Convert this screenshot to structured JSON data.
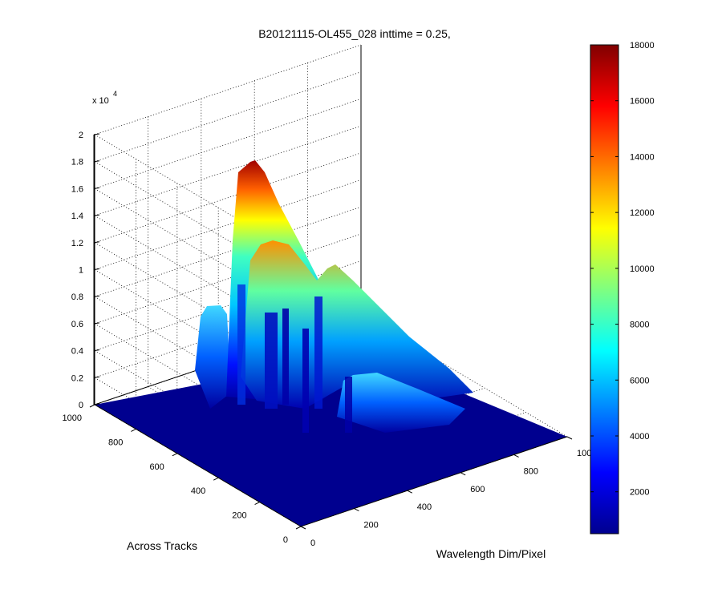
{
  "chart_data": {
    "type": "surface",
    "title": "B20121115-OL455_028 inttime = 0.25,",
    "xlabel": "Wavelength Dim/Pixel",
    "ylabel": "Across Tracks",
    "zlabel": "",
    "z_multiplier_label": "x 10",
    "z_multiplier_exponent": "4",
    "x_ticks": [
      0,
      200,
      400,
      600,
      800,
      1000
    ],
    "y_ticks": [
      0,
      200,
      400,
      600,
      800,
      1000
    ],
    "z_ticks": [
      "0",
      "0.2",
      "0.4",
      "0.6",
      "0.8",
      "1",
      "1.2",
      "1.4",
      "1.6",
      "1.8",
      "2"
    ],
    "xlim": [
      0,
      1000
    ],
    "ylim": [
      0,
      1000
    ],
    "zlim": [
      0,
      20000
    ],
    "grid": true,
    "colormap": "jet",
    "colorbar": {
      "location": "right",
      "ticks": [
        2000,
        4000,
        6000,
        8000,
        10000,
        12000,
        14000,
        16000,
        18000
      ],
      "range": [
        500,
        18000
      ]
    },
    "surface_profiles": [
      {
        "along_wavelength_x": 45,
        "across_tracks_y": [
          0,
          700
        ],
        "peak": 3000
      },
      {
        "along_wavelength_x": 120,
        "across_tracks_y": [
          0,
          720
        ],
        "peak": 18000
      },
      {
        "along_wavelength_x": 240,
        "across_tracks_y": [
          0,
          760
        ],
        "peak": 14000
      },
      {
        "along_wavelength_x": 330,
        "across_tracks_y": [
          0,
          730
        ],
        "peak": 12000
      },
      {
        "along_wavelength_x": 500,
        "across_tracks_y": [
          0,
          650
        ],
        "peak": 5000
      }
    ]
  }
}
